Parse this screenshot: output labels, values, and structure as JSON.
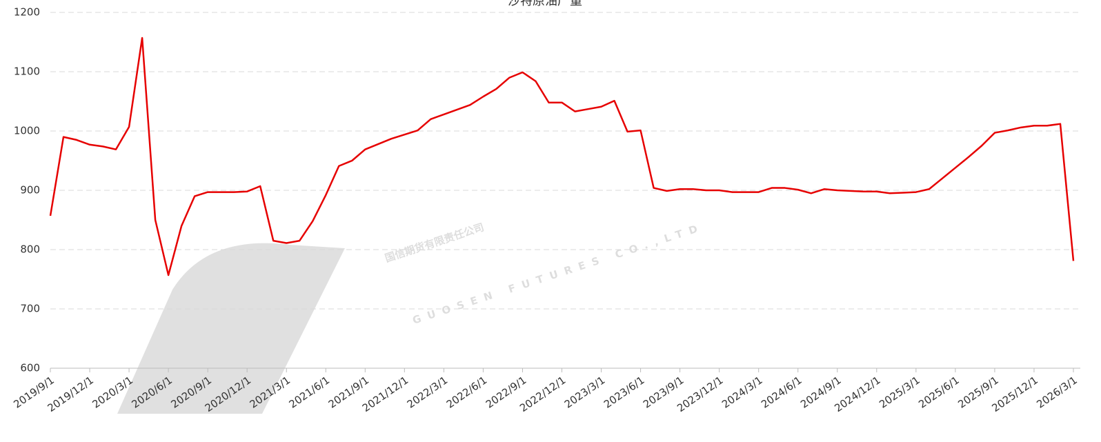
{
  "chart_data": {
    "type": "line",
    "title": "沙特原油产量",
    "watermark": [
      "国信期货有限责任公司",
      "GUOSEN FUTURES CO.,LTD"
    ],
    "categories": [
      "2019/9/1",
      null,
      null,
      "2019/12/1",
      null,
      null,
      "2020/3/1",
      null,
      null,
      "2020/6/1",
      null,
      null,
      "2020/9/1",
      null,
      null,
      "2020/12/1",
      null,
      null,
      "2021/3/1",
      null,
      null,
      "2021/6/1",
      null,
      null,
      "2021/9/1",
      null,
      null,
      "2021/12/1",
      null,
      null,
      "2022/3/1",
      null,
      null,
      "2022/6/1",
      null,
      null,
      "2022/9/1",
      null,
      null,
      "2022/12/1",
      null,
      null,
      "2023/3/1",
      null,
      null,
      "2023/6/1",
      null,
      null,
      "2023/9/1",
      null,
      null,
      "2023/12/1",
      null,
      null,
      "2024/3/1",
      null,
      null,
      "2024/6/1",
      null,
      null,
      "2024/9/1",
      null,
      null,
      "2024/12/1",
      null,
      null,
      "2025/3/1",
      null,
      null,
      "2025/6/1",
      null,
      null,
      "2025/9/1",
      null,
      null,
      "2025/12/1",
      null,
      null,
      "2026/3/1"
    ],
    "series": [
      {
        "name": "沙特原油产量",
        "color": "#e60000",
        "values": [
          857,
          990,
          985,
          977,
          974,
          969,
          1007,
          1157,
          850,
          757,
          840,
          890,
          897,
          897,
          897,
          898,
          907,
          815,
          811,
          815,
          848,
          892,
          941,
          950,
          969,
          978,
          987,
          994,
          1001,
          1020,
          1028,
          1036,
          1044,
          1058,
          1071,
          1090,
          1099,
          1084,
          1048,
          1048,
          1033,
          1037,
          1041,
          1051,
          999,
          1001,
          904,
          899,
          902,
          902,
          900,
          900,
          897,
          897,
          897,
          904,
          904,
          901,
          895,
          902,
          900,
          899,
          898,
          898,
          895,
          896,
          897,
          902,
          920,
          938,
          956,
          975,
          997,
          1001,
          1006,
          1009,
          1009,
          1012,
          781
        ]
      }
    ],
    "ylim": [
      600,
      1200
    ],
    "yticks": [
      600,
      700,
      800,
      900,
      1000,
      1100,
      1200
    ],
    "grid": true
  }
}
